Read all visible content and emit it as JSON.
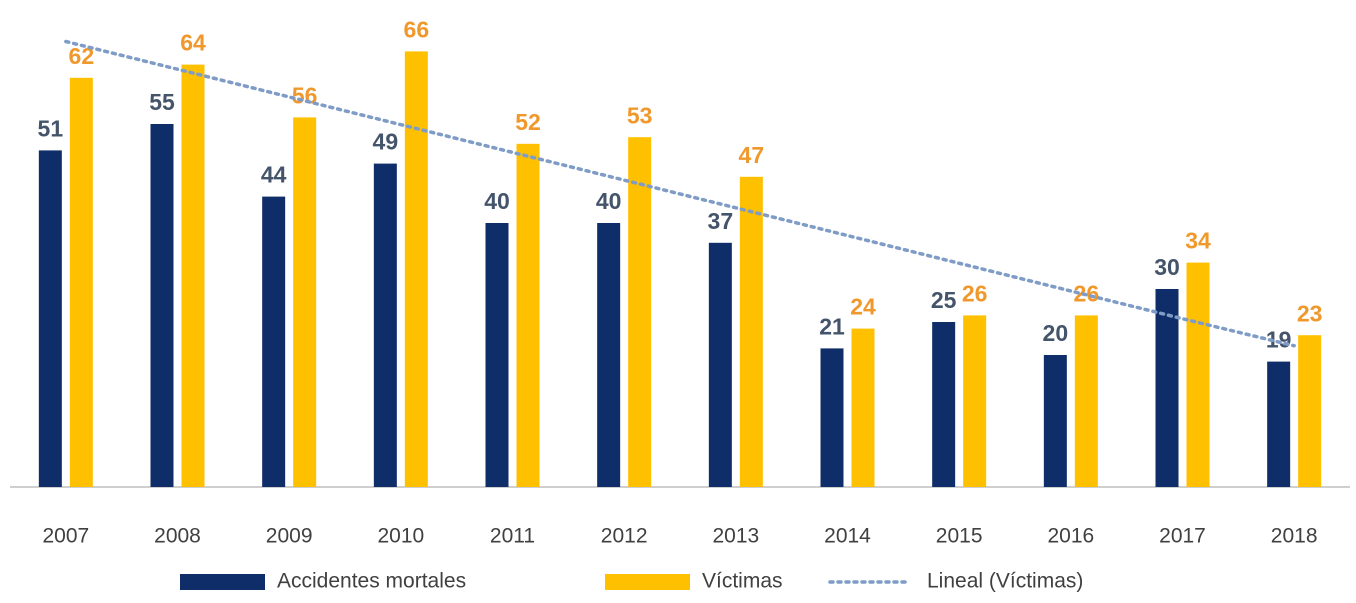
{
  "chart_data": {
    "type": "bar",
    "categories": [
      "2007",
      "2008",
      "2009",
      "2010",
      "2011",
      "2012",
      "2013",
      "2014",
      "2015",
      "2016",
      "2017",
      "2018"
    ],
    "series": [
      {
        "name": "Accidentes mortales",
        "color": "#0f2d69",
        "label_color": "#44546a",
        "values": [
          51,
          55,
          44,
          49,
          40,
          40,
          37,
          21,
          25,
          20,
          30,
          19
        ]
      },
      {
        "name": "Víctimas",
        "color": "#ffc000",
        "label_color": "#f0982c",
        "values": [
          62,
          64,
          56,
          66,
          52,
          53,
          47,
          24,
          26,
          26,
          34,
          23
        ]
      },
      {
        "name": "Lineal (Víctimas)",
        "type": "line",
        "dash": "dotted",
        "color": "#7f9cc6",
        "values": [
          67.5,
          63.3,
          59.1,
          54.9,
          50.7,
          46.5,
          42.3,
          38.1,
          33.9,
          29.7,
          25.5,
          21.4
        ]
      }
    ],
    "ylim": [
      0,
      70
    ],
    "grid": false,
    "legend": "bottom"
  }
}
